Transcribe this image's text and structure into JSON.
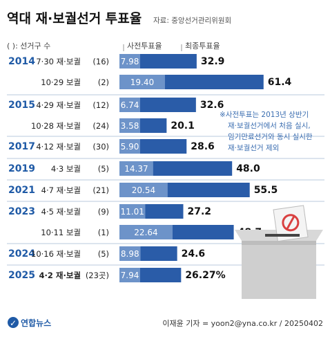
{
  "header": {
    "title": "역대 재·보궐선거 투표율",
    "source": "자료: 중앙선거관리위원회"
  },
  "legend": {
    "seats_label": "( ): 선거구 수",
    "early_label": "사전투표율",
    "final_label": "최종투표율"
  },
  "note": {
    "lines": [
      "※사전투표는 2013년 상반기",
      "재·보궐선거에서 처음 실시,",
      "임기만료선거와 동시 실시한",
      "재·보궐선거 제외"
    ]
  },
  "footer": {
    "logo": "연합뉴스",
    "credit": "이재윤 기자 = yoon2@yna.co.kr / 20250402"
  },
  "chart_data": {
    "type": "bar",
    "title": "역대 재·보궐선거 투표율",
    "rows": [
      {
        "year": "2014",
        "election": "7·30 재·보궐",
        "seats": "(16)",
        "early": 7.98,
        "early_label": "7.98",
        "final": 32.9,
        "final_label": "32.9"
      },
      {
        "year": "",
        "election": "10·29 보궐",
        "seats": "(2)",
        "early": 19.4,
        "early_label": "19.40",
        "final": 61.4,
        "final_label": "61.4"
      },
      {
        "year": "2015",
        "election": "4·29 재·보궐",
        "seats": "(12)",
        "early": 6.74,
        "early_label": "6.74",
        "final": 32.6,
        "final_label": "32.6"
      },
      {
        "year": "",
        "election": "10·28 재·보궐",
        "seats": "(24)",
        "early": 3.58,
        "early_label": "3.58",
        "final": 20.1,
        "final_label": "20.1"
      },
      {
        "year": "2017",
        "election": "4·12 재·보궐",
        "seats": "(30)",
        "early": 5.9,
        "early_label": "5.90",
        "final": 28.6,
        "final_label": "28.6"
      },
      {
        "year": "2019",
        "election": "4·3 보궐",
        "seats": "(5)",
        "early": 14.37,
        "early_label": "14.37",
        "final": 48.0,
        "final_label": "48.0"
      },
      {
        "year": "2021",
        "election": "4·7 재·보궐",
        "seats": "(21)",
        "early": 20.54,
        "early_label": "20.54",
        "final": 55.5,
        "final_label": "55.5"
      },
      {
        "year": "2023",
        "election": "4·5 재·보궐",
        "seats": "(9)",
        "early": 11.01,
        "early_label": "11.01",
        "final": 27.2,
        "final_label": "27.2"
      },
      {
        "year": "",
        "election": "10·11 보궐",
        "seats": "(1)",
        "early": 22.64,
        "early_label": "22.64",
        "final": 48.7,
        "final_label": "48.7"
      },
      {
        "year": "2024",
        "election": "10·16 재·보궐",
        "seats": "(5)",
        "early": 8.98,
        "early_label": "8.98",
        "final": 24.6,
        "final_label": "24.6"
      },
      {
        "year": "2025",
        "election": "4·2 재·보궐",
        "seats": "(23곳)",
        "early": 7.94,
        "early_label": "7.94",
        "final": 26.27,
        "final_label": "26.27%",
        "highlight": true
      }
    ],
    "colors": {
      "early": "#6d93c9",
      "final": "#2a5ca8",
      "year": "#1f5aa6"
    }
  }
}
